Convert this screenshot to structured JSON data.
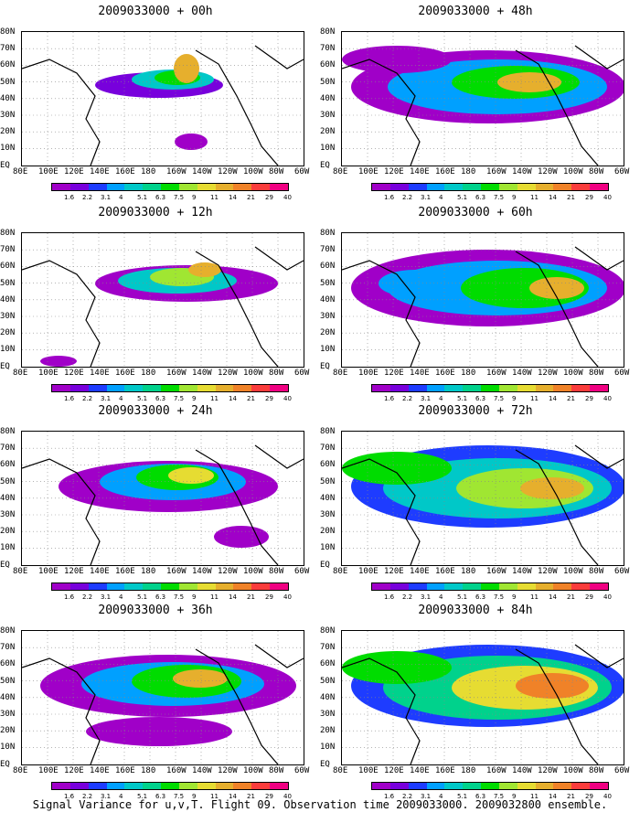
{
  "caption": "Signal Variance for u,v,T. Flight 09. Observation time 2009033000. 2009032800 ensemble.",
  "lat_labels": [
    "80N",
    "70N",
    "60N",
    "50N",
    "40N",
    "30N",
    "20N",
    "10N",
    "EQ"
  ],
  "lon_labels": [
    "80E",
    "100E",
    "120E",
    "140E",
    "160E",
    "180",
    "160W",
    "140W",
    "120W",
    "100W",
    "80W",
    "60W"
  ],
  "colorbar": {
    "labels": [
      "1.6",
      "2.2",
      "3.1",
      "4",
      "5.1",
      "6.3",
      "7.5",
      "9",
      "11",
      "14",
      "21",
      "29",
      "40"
    ],
    "colors": [
      "#a000c8",
      "#7800dc",
      "#1e3cff",
      "#00a0ff",
      "#00c8c8",
      "#00d28c",
      "#00dc00",
      "#a0e632",
      "#e6dc32",
      "#e6af2d",
      "#f08228",
      "#fa3c3c",
      "#f00082"
    ]
  },
  "chart_data": [
    {
      "type": "heatmap",
      "title": "2009033000 + 00h",
      "xlim": [
        "80E",
        "60W"
      ],
      "ylim": [
        "EQ",
        "80N"
      ],
      "xlabel": "",
      "ylabel": ""
    },
    {
      "type": "heatmap",
      "title": "2009033000 + 12h",
      "xlim": [
        "80E",
        "60W"
      ],
      "ylim": [
        "EQ",
        "80N"
      ],
      "xlabel": "",
      "ylabel": ""
    },
    {
      "type": "heatmap",
      "title": "2009033000 + 24h",
      "xlim": [
        "80E",
        "60W"
      ],
      "ylim": [
        "EQ",
        "80N"
      ],
      "xlabel": "",
      "ylabel": ""
    },
    {
      "type": "heatmap",
      "title": "2009033000 + 36h",
      "xlim": [
        "80E",
        "60W"
      ],
      "ylim": [
        "EQ",
        "80N"
      ],
      "xlabel": "",
      "ylabel": ""
    },
    {
      "type": "heatmap",
      "title": "2009033000 + 48h",
      "xlim": [
        "80E",
        "60W"
      ],
      "ylim": [
        "EQ",
        "80N"
      ],
      "xlabel": "",
      "ylabel": ""
    },
    {
      "type": "heatmap",
      "title": "2009033000 + 60h",
      "xlim": [
        "80E",
        "60W"
      ],
      "ylim": [
        "EQ",
        "80N"
      ],
      "xlabel": "",
      "ylabel": ""
    },
    {
      "type": "heatmap",
      "title": "2009033000 + 72h",
      "xlim": [
        "80E",
        "60W"
      ],
      "ylim": [
        "EQ",
        "80N"
      ],
      "xlabel": "",
      "ylabel": ""
    },
    {
      "type": "heatmap",
      "title": "2009033000 + 84h",
      "xlim": [
        "80E",
        "60W"
      ],
      "ylim": [
        "EQ",
        "80N"
      ],
      "xlabel": "",
      "ylabel": ""
    }
  ]
}
